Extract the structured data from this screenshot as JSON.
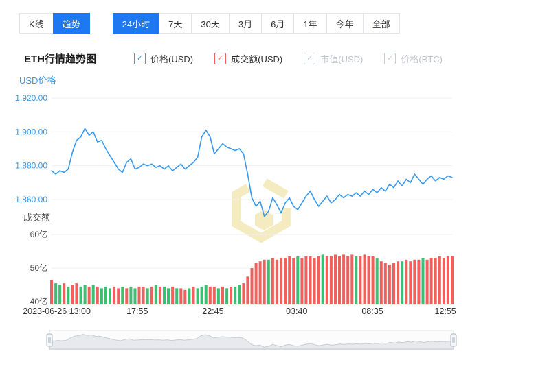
{
  "toolbar": {
    "chart_type_tabs": [
      {
        "label": "K线",
        "name": "tab-kline",
        "active": false
      },
      {
        "label": "趋势",
        "name": "tab-trend",
        "active": true
      }
    ],
    "range_tabs": [
      {
        "label": "24小时",
        "name": "tab-24h",
        "active": true
      },
      {
        "label": "7天",
        "name": "tab-7d",
        "active": false
      },
      {
        "label": "30天",
        "name": "tab-30d",
        "active": false
      },
      {
        "label": "3月",
        "name": "tab-3m",
        "active": false
      },
      {
        "label": "6月",
        "name": "tab-6m",
        "active": false
      },
      {
        "label": "1年",
        "name": "tab-1y",
        "active": false
      },
      {
        "label": "今年",
        "name": "tab-ytd",
        "active": false
      },
      {
        "label": "全部",
        "name": "tab-all",
        "active": false
      }
    ]
  },
  "header": {
    "title": "ETH行情趋势图"
  },
  "legend": [
    {
      "label": "价格(USD)",
      "name": "legend-price-usd",
      "checked": true,
      "enabled": true,
      "color": "#3899F0"
    },
    {
      "label": "成交额(USD)",
      "name": "legend-volume-usd",
      "checked": true,
      "enabled": true,
      "color": "#F0605C"
    },
    {
      "label": "市值(USD)",
      "name": "legend-marketcap-usd",
      "checked": true,
      "enabled": false,
      "color": "#C8CCD4"
    },
    {
      "label": "价格(BTC)",
      "name": "legend-price-btc",
      "checked": true,
      "enabled": false,
      "color": "#C8CCD4"
    }
  ],
  "chart_data": {
    "type": "line+bar",
    "title": "ETH行情趋势图",
    "legend_position": "top",
    "grid": true,
    "x_range": [
      "2023-06-26 13:00",
      "12:55"
    ],
    "x_ticks": [
      "2023-06-26 13:00",
      "17:55",
      "22:45",
      "03:40",
      "08:35",
      "12:55"
    ],
    "x_tick_pos": [
      0.013,
      0.214,
      0.403,
      0.612,
      0.801,
      0.983
    ],
    "price_axis": {
      "title": "USD价格",
      "tick_labels": [
        "1,920.00",
        "1,900.00",
        "1,880.00",
        "1,860.00"
      ],
      "tick_values": [
        1920,
        1900,
        1880,
        1860
      ],
      "ylim": [
        1845,
        1925
      ],
      "color": "#3899F0"
    },
    "volume_axis": {
      "title": "成交额",
      "tick_labels": [
        "60亿",
        "50亿",
        "40亿"
      ],
      "tick_values": [
        60,
        50,
        40
      ],
      "ylim": [
        39,
        62
      ],
      "unit": "亿"
    },
    "series": [
      {
        "name": "价格(USD)",
        "type": "line",
        "color": "#3899F0",
        "values": [
          1877,
          1875,
          1877,
          1876,
          1878,
          1888,
          1895,
          1897,
          1902,
          1898,
          1900,
          1894,
          1895,
          1890,
          1886,
          1882,
          1878,
          1876,
          1882,
          1884,
          1878,
          1879,
          1881,
          1880,
          1881,
          1879,
          1880,
          1878,
          1880,
          1877,
          1879,
          1881,
          1878,
          1880,
          1882,
          1885,
          1897,
          1901,
          1897,
          1887,
          1890,
          1893,
          1891,
          1890,
          1889,
          1890,
          1887,
          1875,
          1861,
          1856,
          1859,
          1850,
          1853,
          1861,
          1857,
          1852,
          1858,
          1861,
          1856,
          1854,
          1858,
          1862,
          1865,
          1860,
          1856,
          1859,
          1862,
          1858,
          1860,
          1863,
          1861,
          1863,
          1862,
          1864,
          1862,
          1865,
          1863,
          1866,
          1864,
          1867,
          1865,
          1869,
          1867,
          1871,
          1868,
          1872,
          1870,
          1875,
          1872,
          1869,
          1872,
          1874,
          1871,
          1873,
          1872,
          1874,
          1873
        ]
      },
      {
        "name": "成交额(USD)",
        "type": "bar",
        "unit": "亿",
        "color_map": {
          "r": "#F0605C",
          "g": "#3DBE72"
        },
        "bar_colors": "rggrgrrggrgrgggrrgrggrrgrgrggrgrrgrgggrrgrgrggrrrrrrgrrrrrrgrrrrrgrrrrrrrgrrrrgrrrrrgrrrrgrrrrrrr",
        "values": [
          46.5,
          45.5,
          45,
          45.5,
          44.5,
          45,
          45.5,
          44.5,
          45,
          44.5,
          45,
          44.5,
          44,
          44.5,
          44,
          44.5,
          44,
          44.5,
          44,
          44.5,
          44,
          44.5,
          44.5,
          44,
          44.5,
          45,
          44.5,
          44.5,
          44,
          44.5,
          44,
          44,
          43.5,
          44,
          44.5,
          44,
          44.5,
          45,
          44.5,
          44.5,
          44,
          44.5,
          44,
          44.5,
          44.5,
          45,
          45.5,
          47.5,
          50,
          51.5,
          52,
          52.5,
          52.5,
          53,
          52.5,
          53,
          53,
          53.5,
          53,
          53.5,
          53,
          53.5,
          53.5,
          53,
          53.5,
          54,
          53.5,
          53.5,
          54,
          53.5,
          54,
          53.5,
          54,
          53.5,
          53.5,
          54,
          53.5,
          53.5,
          53,
          52,
          51.5,
          51,
          51.5,
          52,
          52,
          52.5,
          52,
          52.5,
          52.5,
          53,
          52.5,
          53,
          53,
          53.5,
          53,
          53.5,
          53.5
        ]
      }
    ],
    "watermark_color": "#F5EBC0"
  },
  "navigator": {
    "type": "mini-area",
    "zoom_extent": "full"
  }
}
